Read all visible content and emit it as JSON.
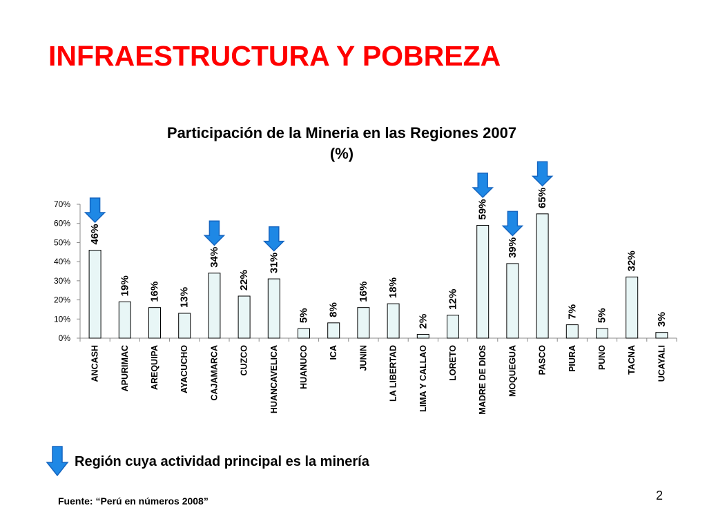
{
  "slide": {
    "title": "INFRAESTRUCTURA Y POBREZA",
    "page_number": "2",
    "source": "Fuente: “Perú en números 2008”",
    "legend_text": "Región cuya actividad principal es la minería",
    "legend_icon": "down-arrow-icon"
  },
  "colors": {
    "title": "#ff0000",
    "bar_fill": "#e8f6f6",
    "bar_stroke": "#000000",
    "arrow_fill": "#1e88e5",
    "arrow_stroke": "#1565c0"
  },
  "chart_data": {
    "type": "bar",
    "title": "Participación de la Mineria en las Regiones 2007",
    "subtitle": "(%)",
    "categories": [
      "ANCASH",
      "APURIMAC",
      "AREQUIPA",
      "AYACUCHO",
      "CAJAMARCA",
      "CUZCO",
      "HUANCAVELICA",
      "HUANUCO",
      "ICA",
      "JUNIN",
      "LA LIBERTAD",
      "LIMA Y CALLAO",
      "LORETO",
      "MADRE DE DIOS",
      "MOQUEGUA",
      "PASCO",
      "PIURA",
      "PUNO",
      "TACNA",
      "UCAYALI"
    ],
    "values": [
      46,
      19,
      16,
      13,
      34,
      22,
      31,
      5,
      8,
      16,
      18,
      2,
      12,
      59,
      39,
      65,
      7,
      5,
      32,
      3
    ],
    "data_labels": [
      "46%",
      "19%",
      "16%",
      "13%",
      "34%",
      "22%",
      "31%",
      "5%",
      "8%",
      "16%",
      "18%",
      "2%",
      "12%",
      "59%",
      "39%",
      "65%",
      "7%",
      "5%",
      "32%",
      "3%"
    ],
    "mining_regions": [
      "ANCASH",
      "CAJAMARCA",
      "HUANCAVELICA",
      "MADRE DE DIOS",
      "MOQUEGUA",
      "PASCO"
    ],
    "ylim": [
      0,
      70
    ],
    "yticks": [
      0,
      10,
      20,
      30,
      40,
      50,
      60,
      70
    ],
    "ytick_labels": [
      "0%",
      "10%",
      "20%",
      "30%",
      "40%",
      "50%",
      "60%",
      "70%"
    ],
    "xlabel": "",
    "ylabel": "",
    "grid": false
  }
}
